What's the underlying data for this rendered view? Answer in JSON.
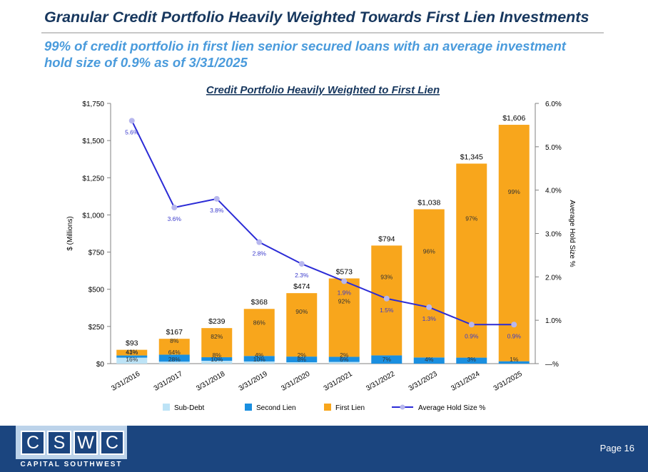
{
  "slide": {
    "title": "Granular Credit Portfolio Heavily Weighted Towards First Lien Investments",
    "subtitle": "99% of credit portfolio in first lien senior secured loans with an average investment hold size of 0.9% as of 3/31/2025"
  },
  "chart_data": {
    "type": "bar",
    "stacked": true,
    "title": "Credit Portfolio Heavily Weighted to First Lien",
    "ylabel": "$ (Millions)",
    "y2label": "Average Hold Size %",
    "ylim": [
      0,
      1750
    ],
    "y2lim": [
      0,
      6
    ],
    "yticks": [
      "$0",
      "$250",
      "$500",
      "$750",
      "$1,000",
      "$1,250",
      "$1,500",
      "$1,750"
    ],
    "y2ticks": [
      "—%",
      "1.0%",
      "2.0%",
      "3.0%",
      "4.0%",
      "5.0%",
      "6.0%"
    ],
    "categories": [
      "3/31/2016",
      "3/31/2017",
      "3/31/2018",
      "3/31/2019",
      "3/31/2020",
      "3/31/2021",
      "3/31/2022",
      "3/31/2023",
      "3/31/2024",
      "3/31/2025"
    ],
    "totals": [
      93,
      167,
      239,
      368,
      474,
      573,
      794,
      1038,
      1345,
      1606
    ],
    "total_labels": [
      "$93",
      "$167",
      "$239",
      "$368",
      "$474",
      "$573",
      "$794",
      "$1,038",
      "$1,345",
      "$1,606"
    ],
    "series": [
      {
        "name": "Sub-Debt",
        "color": "#bde3f6",
        "percent": [
          43,
          8,
          8,
          4,
          2,
          2,
          0,
          0,
          0,
          0
        ],
        "labels": [
          "43%",
          "8%",
          "8%",
          "4%",
          "2%",
          "2%",
          "",
          "",
          "",
          ""
        ]
      },
      {
        "name": "Second Lien",
        "color": "#1a8fe0",
        "percent": [
          16,
          28,
          10,
          10,
          8,
          6,
          7,
          4,
          3,
          1
        ],
        "labels": [
          "16%",
          "28%",
          "10%",
          "10%",
          "8%",
          "6%",
          "7%",
          "4%",
          "3%",
          "1%"
        ]
      },
      {
        "name": "First Lien",
        "color": "#f8a61c",
        "percent": [
          41,
          64,
          82,
          86,
          90,
          92,
          93,
          96,
          97,
          99
        ],
        "labels": [
          "41%",
          "64%",
          "82%",
          "86%",
          "90%",
          "92%",
          "93%",
          "96%",
          "97%",
          "99%"
        ]
      }
    ],
    "line": {
      "name": "Average Hold Size %",
      "color": "#2b2bd6",
      "marker_color": "#b7b7ee",
      "values": [
        5.6,
        3.6,
        3.8,
        2.8,
        2.3,
        1.9,
        1.5,
        1.3,
        0.9,
        0.9
      ],
      "labels": [
        "5.6%",
        "3.6%",
        "3.8%",
        "2.8%",
        "2.3%",
        "1.9%",
        "1.5%",
        "1.3%",
        "0.9%",
        "0.9%"
      ]
    },
    "legend": [
      "Sub-Debt",
      "Second Lien",
      "First Lien",
      "Average Hold Size %"
    ],
    "legend_position": "bottom",
    "grid": false
  },
  "footer": {
    "logo_letters": [
      "C",
      "S",
      "W",
      "C"
    ],
    "logo_subtitle": "CAPITAL SOUTHWEST",
    "page": "Page 16"
  }
}
